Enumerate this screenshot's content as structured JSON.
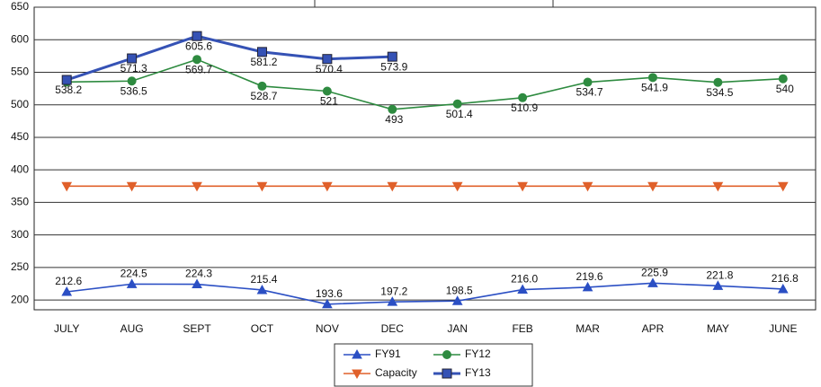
{
  "chart_data": {
    "type": "line",
    "categories": [
      "JULY",
      "AUG",
      "SEPT",
      "OCT",
      "NOV",
      "DEC",
      "JAN",
      "FEB",
      "MAR",
      "APR",
      "MAY",
      "JUNE"
    ],
    "series": [
      {
        "name": "FY91",
        "color": "#2b4fc4",
        "marker": "triangle-up",
        "values": [
          212.6,
          224.5,
          224.3,
          215.4,
          193.6,
          197.2,
          198.5,
          216.0,
          219.6,
          225.9,
          221.8,
          216.8
        ],
        "value_labels": [
          "212.6",
          "224.5",
          "224.3",
          "215.4",
          "193.6",
          "197.2",
          "198.5",
          "216.0",
          "219.6",
          "225.9",
          "221.8",
          "216.8"
        ]
      },
      {
        "name": "FY12",
        "color": "#2e8b40",
        "marker": "circle",
        "values": [
          535,
          536.5,
          569.7,
          528.7,
          521,
          493,
          501.4,
          510.9,
          534.7,
          541.9,
          534.5,
          540
        ],
        "value_labels": [
          null,
          "536.5",
          "569.7",
          "528.7",
          "521",
          "493",
          "501.4",
          "510.9",
          "534.7",
          "541.9",
          "534.5",
          "540"
        ]
      },
      {
        "name": "Capacity",
        "color": "#e0602a",
        "marker": "triangle-down",
        "values": [
          375,
          375,
          375,
          375,
          375,
          375,
          375,
          375,
          375,
          375,
          375,
          375
        ]
      },
      {
        "name": "FY13",
        "color": "#3552b5",
        "marker": "square",
        "values": [
          538.2,
          571.3,
          605.6,
          581.2,
          570.4,
          573.9,
          null,
          null,
          null,
          null,
          null,
          null
        ],
        "value_labels": [
          "538.2",
          "571.3",
          "605.6",
          "581.2",
          "570.4",
          "573.9",
          null,
          null,
          null,
          null,
          null,
          null
        ]
      }
    ],
    "ylim": [
      185,
      650
    ],
    "yticks": [
      200,
      250,
      300,
      350,
      400,
      450,
      500,
      550,
      600,
      650
    ],
    "grid": true,
    "legend": "bottom"
  }
}
